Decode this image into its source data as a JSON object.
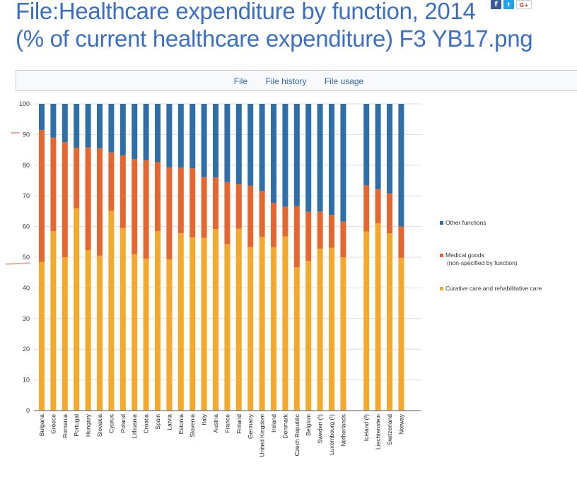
{
  "title": {
    "line1": "File:Healthcare expenditure by function, 2014",
    "line2": "(% of current healthcare expenditure) F3 YB17.png"
  },
  "share": {
    "facebook": "f",
    "twitter": "t",
    "googleplus": "G+"
  },
  "tabs": [
    {
      "label": "File"
    },
    {
      "label": "File history"
    },
    {
      "label": "File usage"
    }
  ],
  "colors": {
    "other": "#2e6ea9",
    "medical": "#e5672f",
    "curative": "#f4a92c",
    "grid": "#dedede",
    "axis": "#555555",
    "annotation": "#f4a5a5"
  },
  "chart_data": {
    "type": "bar",
    "stacked": true,
    "title": "",
    "xlabel": "",
    "ylabel": "",
    "ylim": [
      0,
      100
    ],
    "yticks": [
      0,
      10,
      20,
      30,
      40,
      50,
      60,
      70,
      80,
      90,
      100
    ],
    "grid": true,
    "legend_position": "right",
    "categories": [
      "Bulgaria",
      "Greece",
      "Romania",
      "Portugal",
      "Hungary",
      "Slovakia",
      "Cyprus",
      "Poland",
      "Lithuania",
      "Croatia",
      "Spain",
      "Latvia",
      "Estonia",
      "Slovenia",
      "Italy",
      "Austria",
      "France",
      "Finland",
      "Germany",
      "United Kingdom",
      "Ireland",
      "Denmark",
      "Czech Republic",
      "Belgium",
      "Sweden (¹)",
      "Luxembourg (¹)",
      "Netherlands",
      "",
      "Iceland (²)",
      "Liechtenstein",
      "Switzerland",
      "Norway"
    ],
    "series": [
      {
        "name": "Curative care and rehabilitative care",
        "color_key": "curative",
        "values": [
          48.5,
          58.5,
          50,
          66,
          52.3,
          50.5,
          65.2,
          59.5,
          51,
          49.5,
          58.5,
          49.3,
          57.8,
          56.5,
          56.3,
          59.2,
          54.3,
          59.3,
          53.3,
          56.6,
          53.3,
          56.8,
          46.7,
          48.8,
          52.8,
          53.1,
          50,
          null,
          58.4,
          61.1,
          57.8,
          49.8
        ]
      },
      {
        "name": "Medical goods\n(non-specified by function)",
        "color_key": "medical",
        "values": [
          43,
          30.5,
          37.5,
          19.7,
          33.5,
          35,
          19,
          23.7,
          31,
          32.2,
          22.5,
          30,
          21.4,
          22.5,
          19.8,
          16.8,
          20.2,
          14.6,
          20,
          15,
          14.4,
          9.7,
          20,
          16,
          12.1,
          10.7,
          11.6,
          null,
          15,
          11.1,
          13,
          10.2
        ]
      },
      {
        "name": "Other functions",
        "color_key": "other",
        "values": [
          8.5,
          11,
          12.5,
          14.3,
          14.2,
          14.5,
          15.8,
          16.8,
          18,
          18.3,
          19,
          20.7,
          20.8,
          21,
          23.9,
          24,
          25.5,
          26.1,
          26.7,
          28.4,
          32.3,
          33.5,
          33.3,
          35.2,
          35.1,
          36.2,
          38.4,
          null,
          26.6,
          27.8,
          29.2,
          40
        ]
      }
    ]
  }
}
